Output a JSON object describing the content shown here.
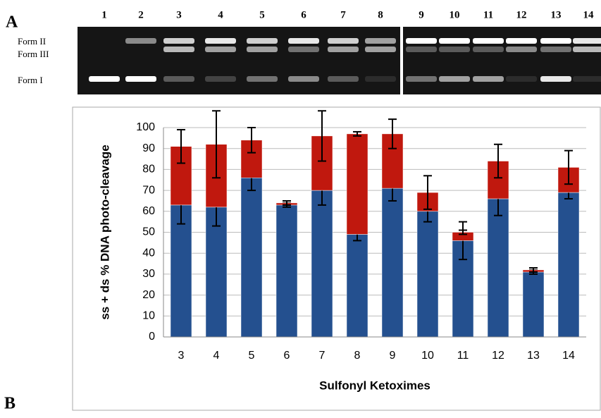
{
  "figure": {
    "panel_labels": [
      "A",
      "B"
    ],
    "lanes": [
      "1",
      "2",
      "3",
      "4",
      "5",
      "6",
      "7",
      "8",
      "9",
      "10",
      "11",
      "12",
      "13",
      "14"
    ],
    "forms": [
      "Form II",
      "Form III",
      "Form I"
    ]
  },
  "chart_data": {
    "type": "stacked_bar",
    "y_label": "ss + ds  % DNA photo-cleavage",
    "x_label": "Sulfonyl Ketoximes",
    "categories": [
      "3",
      "4",
      "5",
      "6",
      "7",
      "8",
      "9",
      "10",
      "11",
      "12",
      "13",
      "14"
    ],
    "series": [
      {
        "name": "ss",
        "color": "#24508f",
        "values": [
          63,
          62,
          76,
          63,
          70,
          49,
          71,
          60,
          46,
          66,
          31,
          69
        ],
        "errors": [
          9,
          9,
          6,
          1,
          7,
          3,
          6,
          5,
          9,
          8,
          1,
          3
        ]
      },
      {
        "name": "ds",
        "color": "#c0180e",
        "values": [
          28,
          30,
          18,
          1,
          26,
          48,
          26,
          9,
          4,
          18,
          1,
          12
        ],
        "errors": [
          8,
          16,
          6,
          1,
          12,
          1,
          7,
          8,
          1,
          8,
          1,
          8
        ]
      }
    ],
    "ylim": [
      0,
      100
    ],
    "yticks": [
      0,
      10,
      20,
      30,
      40,
      50,
      60,
      70,
      80,
      90,
      100
    ],
    "grid": true
  }
}
